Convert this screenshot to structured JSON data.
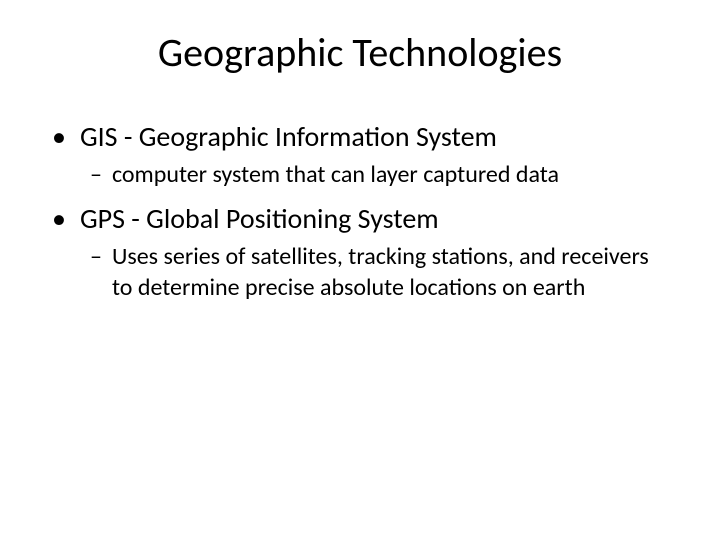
{
  "slide": {
    "title": "Geographic Technologies",
    "title_fontsize": 40,
    "background_color": "#ffffff",
    "text_color": "#000000",
    "bullets": [
      {
        "level": 1,
        "marker": "•",
        "text": "GIS - Geographic Information System",
        "fontsize": 28,
        "children": [
          {
            "level": 2,
            "marker": "–",
            "text": "computer system that can layer captured data",
            "fontsize": 24
          }
        ]
      },
      {
        "level": 1,
        "marker": "•",
        "text": "GPS - Global Positioning System",
        "fontsize": 28,
        "children": [
          {
            "level": 2,
            "marker": "–",
            "text": "Uses series of satellites, tracking stations, and receivers to determine precise absolute locations on earth",
            "fontsize": 24
          }
        ]
      }
    ]
  }
}
